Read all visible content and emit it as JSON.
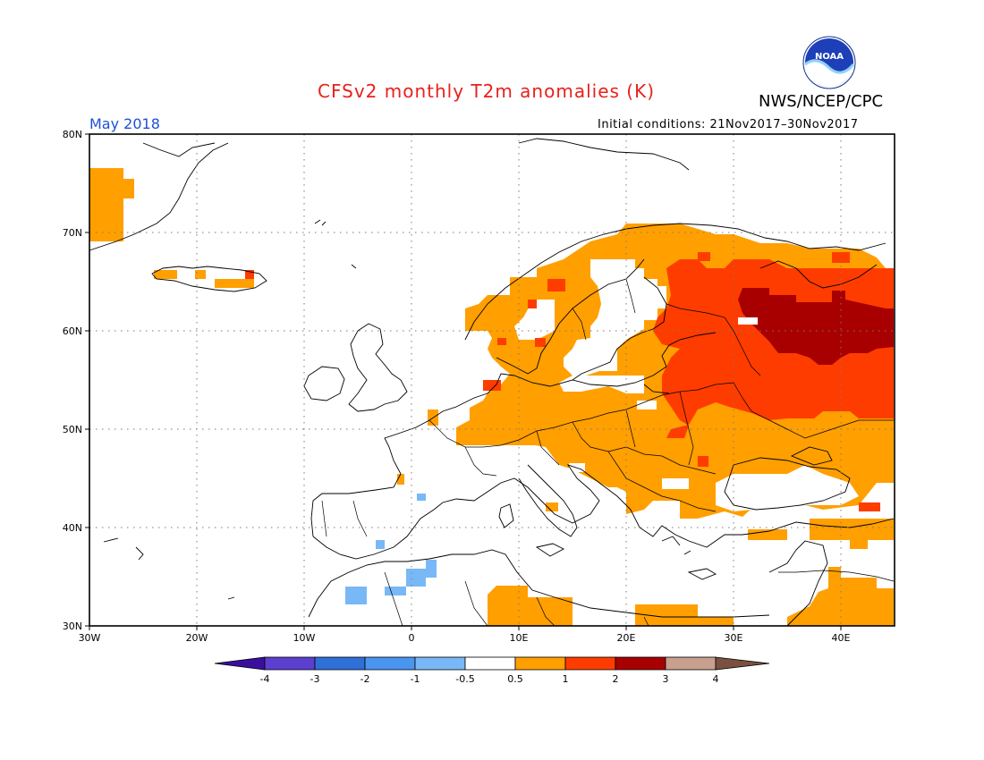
{
  "header": {
    "title": "CFSv2 monthly T2m anomalies (K)",
    "agency": "NWS/NCEP/CPC",
    "period": "May 2018",
    "initial_conditions": "Initial conditions: 21Nov2017–30Nov2017",
    "logo_text": "NOAA"
  },
  "map": {
    "lon_range": [
      -30,
      45
    ],
    "lat_range": [
      30,
      80
    ],
    "lat_ticks": [
      "30N",
      "40N",
      "50N",
      "60N",
      "70N",
      "80N"
    ],
    "lon_ticks": [
      "30W",
      "20W",
      "10W",
      "0",
      "10E",
      "20E",
      "30E",
      "40E"
    ],
    "colors": {
      "lt_-4": "#3a0f9e",
      "-4_-3": "#5a3fd0",
      "-3_-2": "#2f6fd8",
      "-2_-1": "#4a95ef",
      "-1_-0.5": "#79b8f6",
      "-0.5_0.5": "#ffffff",
      "0.5_1": "#ff9f00",
      "1_2": "#ff3c00",
      "2_3": "#a80000",
      "3_4": "#c8a08f",
      "gt_4": "#7a5040"
    }
  },
  "colorbar": {
    "labels": [
      "-4",
      "-3",
      "-2",
      "-1",
      "-0.5",
      "0.5",
      "1",
      "2",
      "3",
      "4"
    ],
    "colors": [
      "#3a0f9e",
      "#5a3fd0",
      "#2f6fd8",
      "#4a95ef",
      "#79b8f6",
      "#ffffff",
      "#ff9f00",
      "#ff3c00",
      "#a80000",
      "#c8a08f",
      "#7a5040"
    ]
  }
}
